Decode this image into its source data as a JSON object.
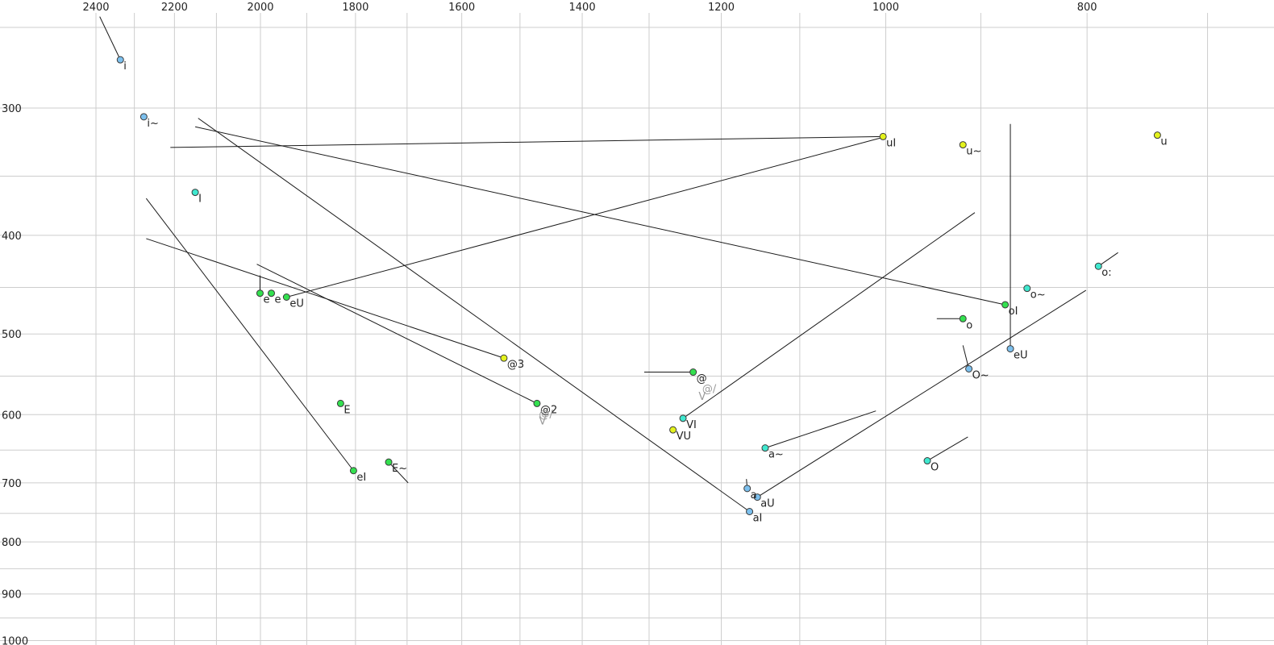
{
  "chart_data": {
    "type": "scatter",
    "title": "",
    "xlabel": "",
    "ylabel": "",
    "x_axis": {
      "reversed": true,
      "scale": "log",
      "range": [
        2530,
        680
      ],
      "ticks": [
        2400,
        2200,
        2000,
        1800,
        1600,
        1400,
        1200,
        1000,
        800
      ],
      "tick_labels": [
        "2400",
        "2200",
        "2000",
        "1800",
        "1600",
        "1400",
        "1200",
        "1000",
        "800"
      ],
      "minor_ticks": [
        2300,
        2100,
        1900,
        1700,
        1500,
        1300,
        1100,
        900,
        700
      ],
      "position": "top"
    },
    "y_axis": {
      "scale": "log",
      "range": [
        235,
        1010
      ],
      "ticks": [
        300,
        400,
        500,
        600,
        700,
        800,
        900,
        1000
      ],
      "tick_labels": [
        "300",
        "400",
        "500",
        "600",
        "700",
        "800",
        "900",
        "1000"
      ],
      "minor_ticks": [
        250,
        350,
        450,
        550,
        650,
        750,
        850,
        950
      ],
      "position": "left"
    },
    "grid": true,
    "colors": {
      "green": "#33e04f",
      "yellow": "#e3f21d",
      "cyan": "#3fe8cf",
      "blue": "#7cc0ee",
      "gray": "#b5b5b5",
      "line": "#1a1a1a",
      "grid": "#cdcdcd"
    },
    "points": [
      {
        "label": "i",
        "f2": 2336,
        "f1": 269,
        "color": "blue",
        "traj": [
          2390,
          244
        ]
      },
      {
        "label": "i~",
        "f2": 2276,
        "f1": 306,
        "color": "blue"
      },
      {
        "label": "I",
        "f2": 2150,
        "f1": 363,
        "color": "cyan"
      },
      {
        "label": "e",
        "f2": 2001,
        "f1": 456,
        "color": "green",
        "traj": [
          2001,
          438
        ]
      },
      {
        "label": "e",
        "f2": 1976,
        "f1": 456,
        "color": "green"
      },
      {
        "label": "eU",
        "f2": 1943,
        "f1": 460,
        "color": "green",
        "traj": [
          1000,
          320
        ]
      },
      {
        "label": "E",
        "f2": 1830,
        "f1": 585,
        "color": "green"
      },
      {
        "label": "eI",
        "f2": 1804,
        "f1": 681,
        "color": "green",
        "traj": [
          2270,
          368
        ]
      },
      {
        "label": "E~",
        "f2": 1735,
        "f1": 668,
        "color": "green",
        "traj": [
          1698,
          700
        ]
      },
      {
        "label": "@3",
        "f2": 1527,
        "f1": 528,
        "color": "yellow",
        "traj": [
          2270,
          403
        ]
      },
      {
        "label": "@2",
        "f2": 1472,
        "f1": 585,
        "color": "green",
        "traj": [
          2008,
          427
        ]
      },
      {
        "label": "@/",
        "f2": 1474,
        "f1": 591,
        "color": "gray"
      },
      {
        "label": "V",
        "f2": 1474,
        "f1": 600,
        "color": "gray"
      },
      {
        "label": "@",
        "f2": 1238,
        "f1": 545,
        "color": "green",
        "traj": [
          1307,
          545
        ]
      },
      {
        "label": "@/",
        "f2": 1230,
        "f1": 558,
        "color": "gray"
      },
      {
        "label": "V",
        "f2": 1235,
        "f1": 568,
        "color": "gray"
      },
      {
        "label": "VI",
        "f2": 1252,
        "f1": 605,
        "color": "cyan",
        "traj": [
          906,
          380
        ]
      },
      {
        "label": "VU",
        "f2": 1266,
        "f1": 621,
        "color": "yellow"
      },
      {
        "label": "a~",
        "f2": 1143,
        "f1": 647,
        "color": "cyan",
        "traj": [
          1011,
          595
        ]
      },
      {
        "label": "a",
        "f2": 1166,
        "f1": 709,
        "color": "blue",
        "traj": [
          1167,
          694
        ]
      },
      {
        "label": "aU",
        "f2": 1153,
        "f1": 723,
        "color": "blue",
        "traj": [
          801,
          453
        ]
      },
      {
        "label": "aI",
        "f2": 1163,
        "f1": 747,
        "color": "blue",
        "traj": [
          2143,
          307
        ]
      },
      {
        "label": "O",
        "f2": 955,
        "f1": 666,
        "color": "cyan",
        "traj": [
          913,
          631
        ]
      },
      {
        "label": "uI",
        "f2": 1003,
        "f1": 320,
        "color": "yellow",
        "traj": [
          2210,
          328
        ]
      },
      {
        "label": "u~",
        "f2": 918,
        "f1": 326,
        "color": "yellow"
      },
      {
        "label": "u",
        "f2": 740,
        "f1": 319,
        "color": "yellow"
      },
      {
        "label": "oI",
        "f2": 876,
        "f1": 468,
        "color": "green",
        "traj": [
          2150,
          313
        ]
      },
      {
        "label": "o~",
        "f2": 855,
        "f1": 451,
        "color": "cyan"
      },
      {
        "label": "o:",
        "f2": 790,
        "f1": 429,
        "color": "cyan",
        "traj": [
          773,
          416
        ]
      },
      {
        "label": "o",
        "f2": 918,
        "f1": 483,
        "color": "green",
        "traj": [
          945,
          483
        ]
      },
      {
        "label": "eU",
        "f2": 871,
        "f1": 517,
        "color": "blue",
        "traj": [
          871,
          311
        ]
      },
      {
        "label": "O~",
        "f2": 912,
        "f1": 541,
        "color": "blue",
        "traj": [
          918,
          513
        ]
      }
    ]
  }
}
